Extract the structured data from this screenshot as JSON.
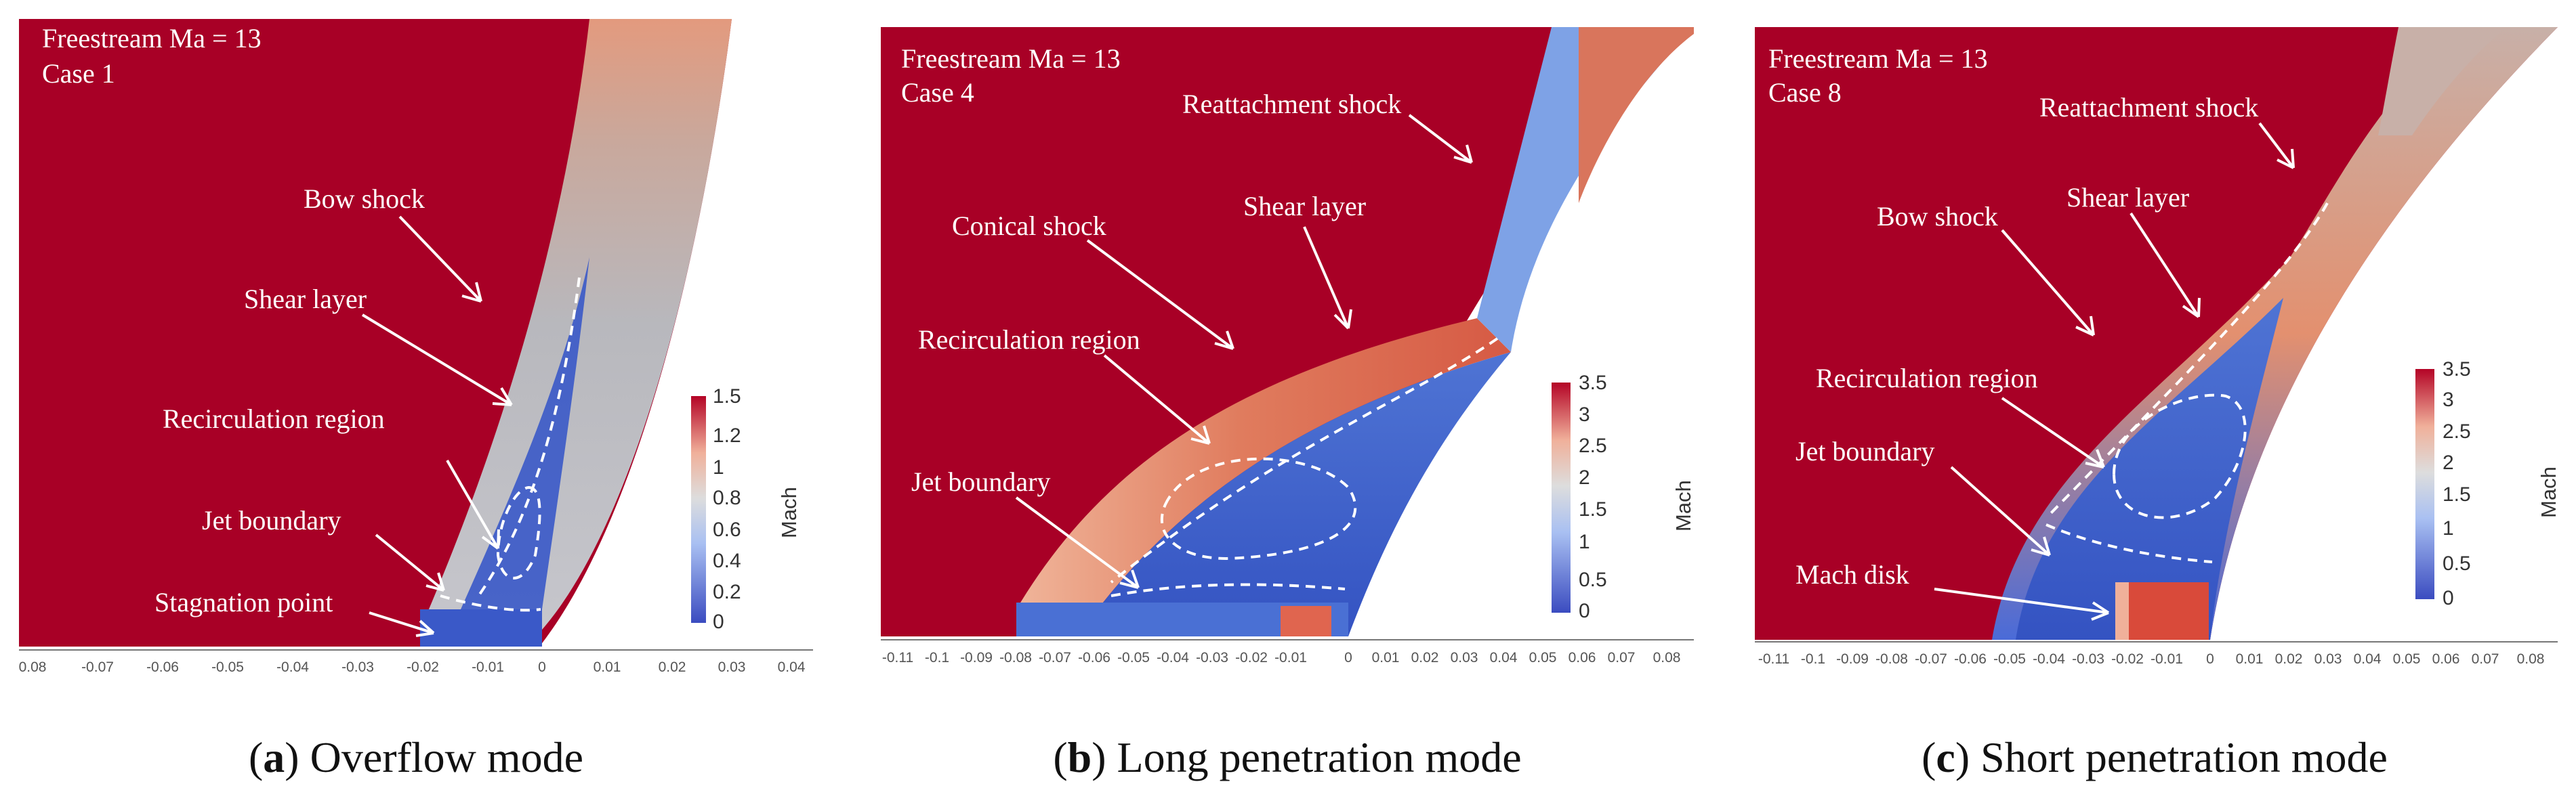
{
  "colors": {
    "freestream": "#a80026",
    "mach_high": "#b40426",
    "mach_mid": "#dddddd",
    "mach_low": "#3b4cc0",
    "annotation": "#ffffff"
  },
  "panels": [
    {
      "header_line1": "Freestream Ma = 13",
      "header_line2": "Case 1",
      "labels": [
        "Bow shock",
        "Shear layer",
        "Recirculation region",
        "Jet boundary",
        "Stagnation point"
      ],
      "colorbar_title": "Mach",
      "colorbar_ticks": [
        "1.5",
        "1.2",
        "1",
        "0.8",
        "0.6",
        "0.4",
        "0.2",
        "0"
      ],
      "axis_ticks": [
        "0.08",
        "-0.07",
        "-0.06",
        "-0.05",
        "-0.04",
        "-0.03",
        "-0.02",
        "-0.01",
        "0",
        "0.01",
        "0.02",
        "0.03",
        "0.04"
      ],
      "caption_letter": "a",
      "caption_text": "Overflow mode"
    },
    {
      "header_line1": "Freestream Ma = 13",
      "header_line2": "Case 4",
      "labels": [
        "Reattachment shock",
        "Conical shock",
        "Shear layer",
        "Recirculation region",
        "Jet boundary"
      ],
      "colorbar_title": "Mach",
      "colorbar_ticks": [
        "3.5",
        "3",
        "2.5",
        "2",
        "1.5",
        "1",
        "0.5",
        "0"
      ],
      "axis_ticks": [
        "-0.11",
        "-0.1",
        "-0.09",
        "-0.08",
        "-0.07",
        "-0.06",
        "-0.05",
        "-0.04",
        "-0.03",
        "-0.02",
        "-0.01",
        "0",
        "0.01",
        "0.02",
        "0.03",
        "0.04",
        "0.05",
        "0.06",
        "0.07",
        "0.08"
      ],
      "caption_letter": "b",
      "caption_text": "Long penetration mode"
    },
    {
      "header_line1": "Freestream Ma = 13",
      "header_line2": "Case 8",
      "labels": [
        "Reattachment shock",
        "Bow shock",
        "Shear layer",
        "Recirculation region",
        "Jet boundary",
        "Mach disk"
      ],
      "colorbar_title": "Mach",
      "colorbar_ticks": [
        "3.5",
        "3",
        "2.5",
        "2",
        "1.5",
        "1",
        "0.5",
        "0"
      ],
      "axis_ticks": [
        "-0.11",
        "-0.1",
        "-0.09",
        "-0.08",
        "-0.07",
        "-0.06",
        "-0.05",
        "-0.04",
        "-0.03",
        "-0.02",
        "-0.01",
        "0",
        "0.01",
        "0.02",
        "0.03",
        "0.04",
        "0.05",
        "0.06",
        "0.07",
        "0.08"
      ],
      "caption_letter": "c",
      "caption_text": "Short penetration mode"
    }
  ]
}
